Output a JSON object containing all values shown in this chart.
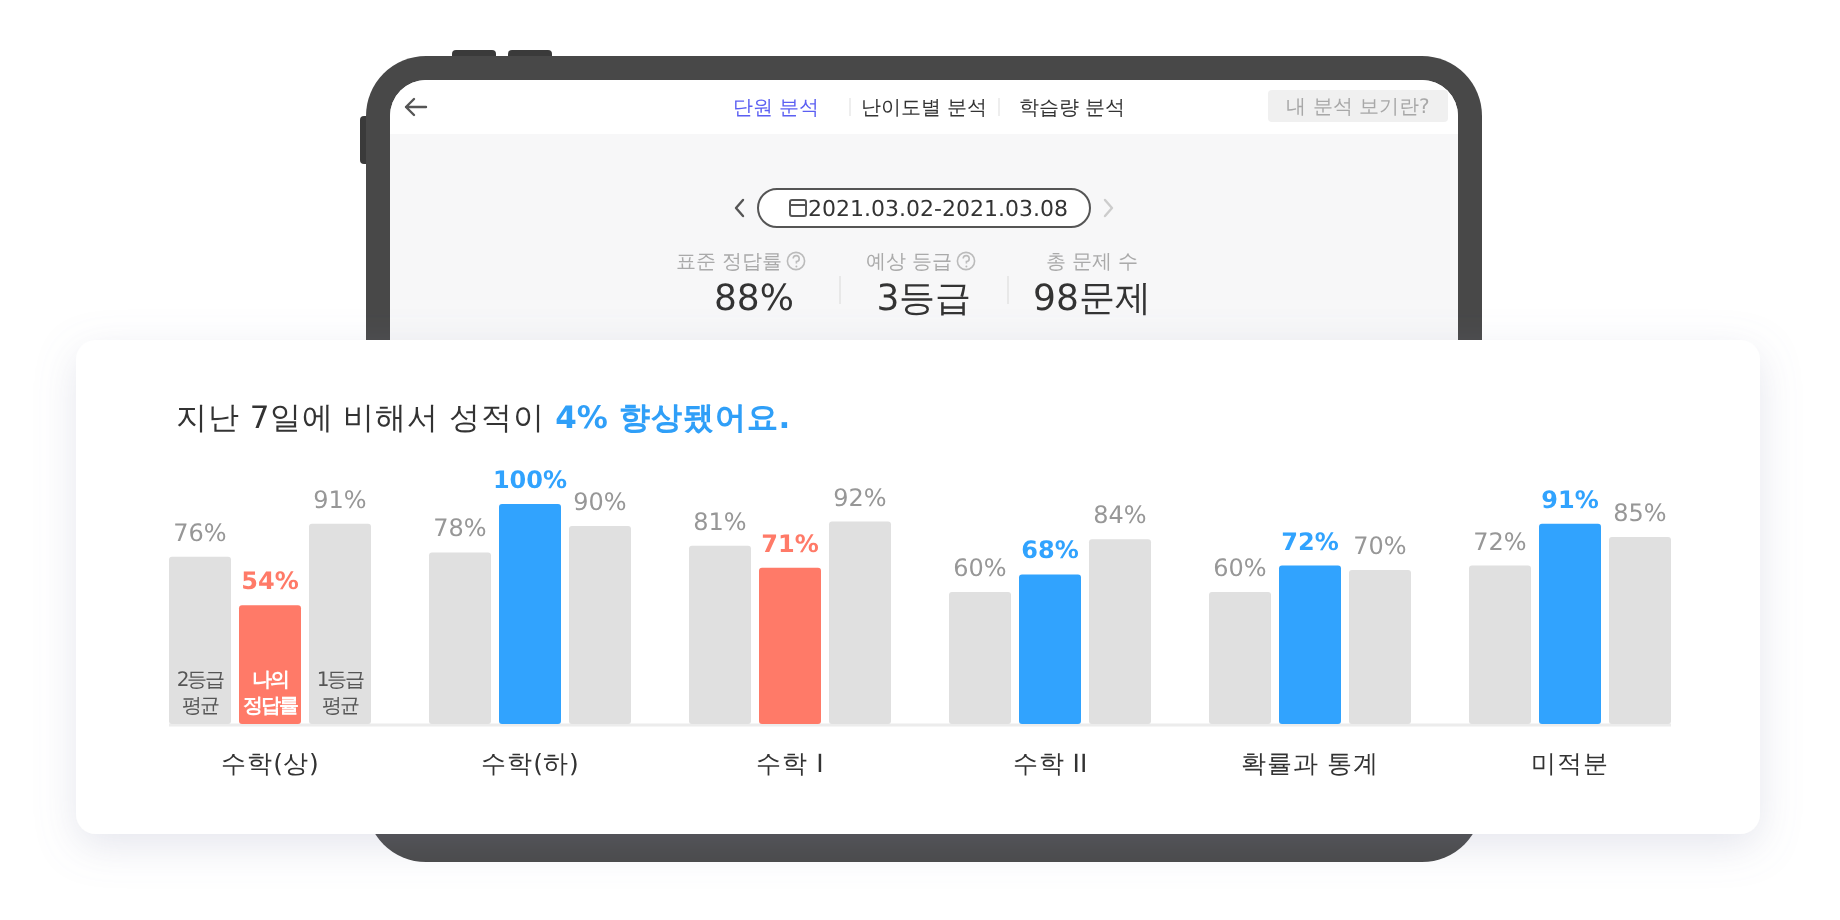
{
  "chart_data": [
    {
      "type": "other",
      "annotations": [
        "단원 분석",
        "난이도별 분석",
        "학습량 분석",
        "내 분석 보기란?",
        "2021.03.02-2021.03.08",
        "표준 정답률",
        "88%",
        "예상 등급",
        "3등급",
        "총 문제 수",
        "98문제"
      ]
    },
    {
      "type": "bar",
      "title": "지난 7일에 비해서 성적이 4% 향상됐어요.",
      "categories": [
        "수학(상)",
        "수학(하)",
        "수학 I",
        "수학 II",
        "확률과 통계",
        "미적분"
      ],
      "ylim": [
        0,
        100
      ],
      "series": [
        {
          "name": "2등급 평균",
          "color": "#e0e0e0",
          "values": [
            76,
            78,
            81,
            60,
            60,
            72
          ],
          "value_labels": [
            "76%",
            "78%",
            "81%",
            "60%",
            "60%",
            "72%"
          ]
        },
        {
          "name": "나의 정답률",
          "colors": [
            "#ff7a68",
            "#31a3fe",
            "#ff7a68",
            "#31a3fe",
            "#31a3fe",
            "#31a3fe"
          ],
          "values": [
            54,
            100,
            71,
            68,
            72,
            91
          ],
          "value_labels": [
            "54%",
            "100%",
            "71%",
            "68%",
            "72%",
            "91%"
          ]
        },
        {
          "name": "1등급 평균",
          "color": "#e0e0e0",
          "values": [
            91,
            90,
            92,
            84,
            70,
            85
          ],
          "value_labels": [
            "91%",
            "90%",
            "92%",
            "84%",
            "70%",
            "85%"
          ]
        }
      ]
    }
  ]
}
